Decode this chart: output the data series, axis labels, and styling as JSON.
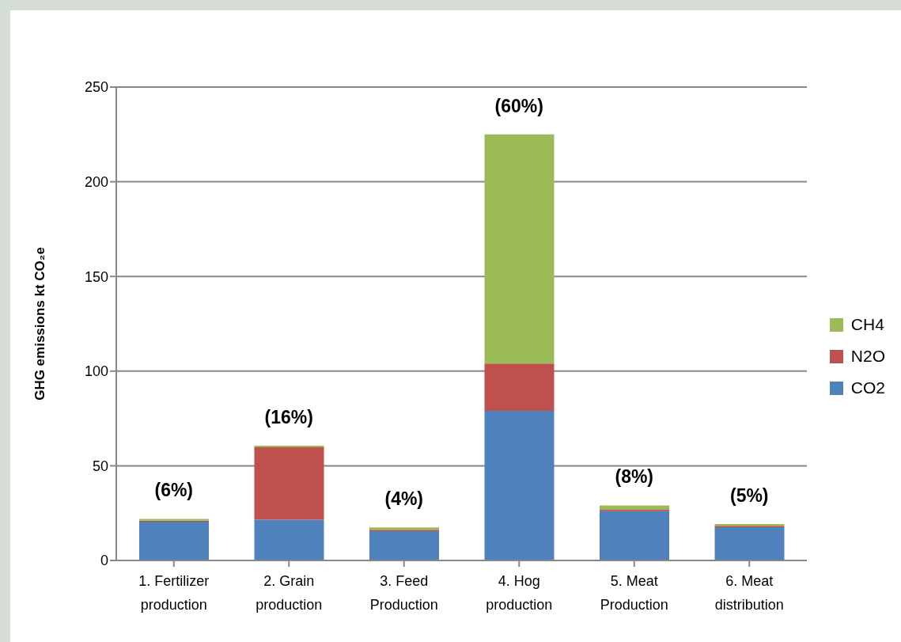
{
  "chart_data": {
    "type": "bar",
    "stacked": true,
    "ylabel": "GHG emissions kt CO₂e",
    "categories": [
      "1. Fertilizer production",
      "2. Grain production",
      "3. Feed Production",
      "4. Hog production",
      "5. Meat Production",
      "6. Meat distribution"
    ],
    "series": [
      {
        "name": "CO2",
        "color": "#4f81bd",
        "values": [
          20.5,
          21.5,
          15.5,
          79,
          26,
          17.6
        ]
      },
      {
        "name": "N2O",
        "color": "#c0504d",
        "values": [
          0.5,
          38.3,
          0.7,
          25,
          0.8,
          0.7
        ]
      },
      {
        "name": "CH4",
        "color": "#9bbb59",
        "values": [
          1,
          0.8,
          1.3,
          121,
          2.3,
          0.9
        ]
      }
    ],
    "ylim": [
      0,
      250
    ],
    "yticks": [
      0,
      50,
      100,
      150,
      200,
      250
    ],
    "grid": "y",
    "legend": "right",
    "annotations": [
      "(6%)",
      "(16%)",
      "(4%)",
      "(60%)",
      "(8%)",
      "(5%)"
    ]
  }
}
